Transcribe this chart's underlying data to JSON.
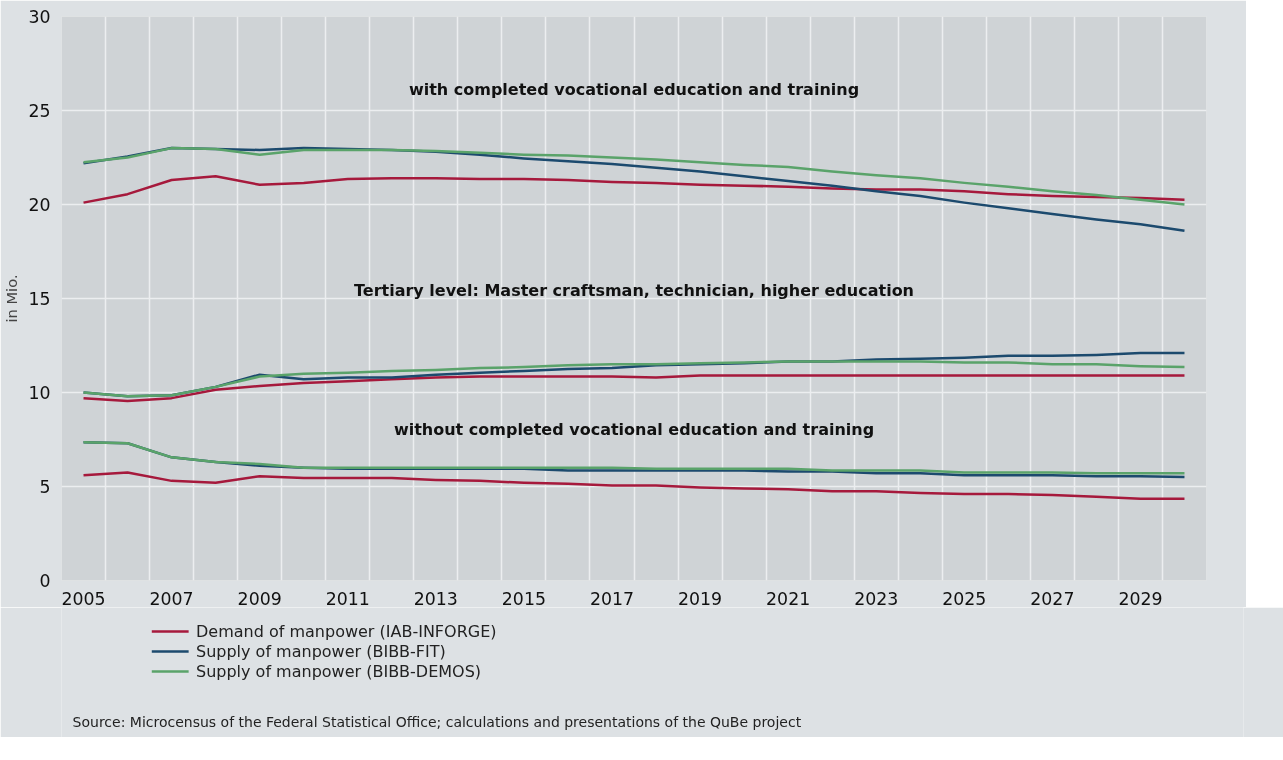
{
  "chart_data": {
    "type": "line",
    "ylabel": "in Mio.",
    "x": [
      2005,
      2006,
      2007,
      2008,
      2009,
      2010,
      2011,
      2012,
      2013,
      2014,
      2015,
      2016,
      2017,
      2018,
      2019,
      2020,
      2021,
      2022,
      2023,
      2024,
      2025,
      2026,
      2027,
      2028,
      2029,
      2030
    ],
    "xlim": [
      2004.5,
      2030.5
    ],
    "xticks": [
      2005,
      2007,
      2009,
      2011,
      2013,
      2015,
      2017,
      2019,
      2021,
      2023,
      2025,
      2027,
      2029,
      {
        "value": 2005.5,
        "label": null
      },
      {
        "value": 2006.5,
        "label": null
      },
      {
        "value": 2007.5,
        "label": null
      },
      {
        "value": 2008.5,
        "label": null
      },
      {
        "value": 2009.5,
        "label": null
      },
      {
        "value": 2010.5,
        "label": null
      },
      {
        "value": 2011.5,
        "label": null
      },
      {
        "value": 2012.5,
        "label": null
      },
      {
        "value": 2013.5,
        "label": null
      },
      {
        "value": 2014.5,
        "label": null
      },
      {
        "value": 2015.5,
        "label": null
      },
      {
        "value": 2016.5,
        "label": null
      },
      {
        "value": 2017.5,
        "label": null
      },
      {
        "value": 2018.5,
        "label": null
      },
      {
        "value": 2019.5,
        "label": null
      },
      {
        "value": 2020.5,
        "label": null
      },
      {
        "value": 2021.5,
        "label": null
      },
      {
        "value": 2022.5,
        "label": null
      },
      {
        "value": 2023.5,
        "label": null
      },
      {
        "value": 2024.5,
        "label": null
      },
      {
        "value": 2025.5,
        "label": null
      },
      {
        "value": 2026.5,
        "label": null
      },
      {
        "value": 2027.5,
        "label": null
      },
      {
        "value": 2028.5,
        "label": null
      },
      {
        "value": 2029.5,
        "label": null
      }
    ],
    "ylim": [
      0,
      30
    ],
    "yticks": [
      0,
      5,
      10,
      15,
      20,
      25,
      30
    ],
    "grid": true,
    "legend": "bottom",
    "marker": "none",
    "line_style": "solid",
    "series": [
      {
        "name": "Demand of manpower (IAB-INFORGE)",
        "color": "#a6193c",
        "values": [
          20.1,
          20.55,
          21.3,
          21.5,
          21.05,
          21.15,
          21.35,
          21.4,
          21.4,
          21.35,
          21.35,
          21.3,
          21.2,
          21.15,
          21.05,
          21.0,
          20.95,
          20.85,
          20.8,
          20.8,
          20.7,
          20.55,
          20.45,
          20.4,
          20.35,
          20.25
        ]
      },
      {
        "name": "Supply of manpower (BIBB-FIT)",
        "color": "#1c4a6e",
        "values": [
          22.2,
          22.55,
          23.0,
          22.95,
          22.9,
          23.0,
          22.95,
          22.9,
          22.8,
          22.65,
          22.45,
          22.3,
          22.15,
          21.95,
          21.75,
          21.5,
          21.25,
          21.0,
          20.7,
          20.45,
          20.1,
          19.8,
          19.5,
          19.2,
          18.95,
          18.6
        ]
      },
      {
        "name": "Supply of manpower (BIBB-DEMOS)",
        "color": "#5aa36a",
        "values": [
          22.25,
          22.5,
          23.0,
          22.95,
          22.65,
          22.9,
          22.9,
          22.9,
          22.85,
          22.75,
          22.65,
          22.6,
          22.5,
          22.4,
          22.25,
          22.1,
          22.0,
          21.75,
          21.55,
          21.4,
          21.15,
          20.95,
          20.7,
          20.5,
          20.25,
          20.0
        ]
      },
      {
        "color": "#a6193c",
        "values": [
          9.7,
          9.55,
          9.7,
          10.15,
          10.35,
          10.5,
          10.6,
          10.7,
          10.8,
          10.85,
          10.85,
          10.85,
          10.85,
          10.8,
          10.9,
          10.9,
          10.9,
          10.9,
          10.9,
          10.9,
          10.9,
          10.9,
          10.9,
          10.9,
          10.9,
          10.9
        ]
      },
      {
        "color": "#1c4a6e",
        "values": [
          10.0,
          9.8,
          9.85,
          10.3,
          10.95,
          10.7,
          10.8,
          10.8,
          10.95,
          11.05,
          11.15,
          11.25,
          11.3,
          11.45,
          11.5,
          11.55,
          11.65,
          11.65,
          11.75,
          11.8,
          11.85,
          11.95,
          11.95,
          12.0,
          12.1,
          12.1
        ]
      },
      {
        "color": "#5aa36a",
        "values": [
          10.0,
          9.8,
          9.85,
          10.3,
          10.85,
          11.0,
          11.05,
          11.15,
          11.2,
          11.3,
          11.35,
          11.45,
          11.5,
          11.5,
          11.55,
          11.6,
          11.65,
          11.65,
          11.65,
          11.65,
          11.6,
          11.6,
          11.5,
          11.5,
          11.4,
          11.35
        ]
      },
      {
        "color": "#a6193c",
        "values": [
          5.6,
          5.75,
          5.3,
          5.2,
          5.55,
          5.45,
          5.45,
          5.45,
          5.35,
          5.3,
          5.2,
          5.15,
          5.05,
          5.05,
          4.95,
          4.9,
          4.85,
          4.75,
          4.75,
          4.65,
          4.6,
          4.6,
          4.55,
          4.45,
          4.35,
          4.35
        ]
      },
      {
        "color": "#1c4a6e",
        "values": [
          7.35,
          7.3,
          6.55,
          6.3,
          6.1,
          6.0,
          5.95,
          5.95,
          5.95,
          5.95,
          5.95,
          5.85,
          5.85,
          5.85,
          5.85,
          5.85,
          5.8,
          5.8,
          5.7,
          5.7,
          5.6,
          5.6,
          5.6,
          5.55,
          5.55,
          5.5
        ]
      },
      {
        "color": "#5aa36a",
        "values": [
          7.35,
          7.3,
          6.55,
          6.3,
          6.2,
          6.0,
          6.0,
          6.0,
          6.0,
          6.0,
          6.0,
          6.0,
          6.0,
          5.95,
          5.95,
          5.95,
          5.95,
          5.85,
          5.85,
          5.85,
          5.75,
          5.75,
          5.75,
          5.7,
          5.7,
          5.7
        ]
      }
    ],
    "annotations": [
      "with completed vocational education and training",
      "Tertiary level: Master craftsman, technician, higher education",
      "without completed vocational education and training",
      "Source: Microcensus of the Federal Statistical Office; calculations and presentations of the QuBe project"
    ]
  }
}
